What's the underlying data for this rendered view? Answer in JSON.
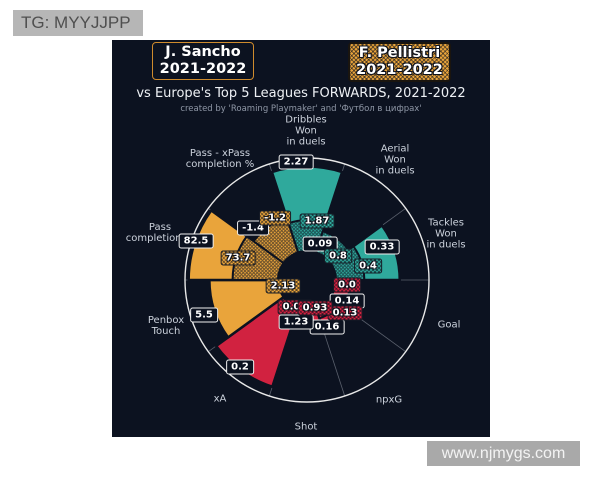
{
  "watermarks": {
    "top_left": "TG: MYYJJPP",
    "bottom_right": "www.njmygs.com"
  },
  "header": {
    "player1": {
      "name": "J. Sancho",
      "season": "2021-2022"
    },
    "player2": {
      "name": "F. Pellistri",
      "season": "2021-2022"
    },
    "title": "vs Europe's Top 5 Leagues FORWARDS, 2021-2022",
    "subtitle": "created by 'Roaming Playmaker' and 'Футбол в цифрах'"
  },
  "colors": {
    "panel_background": "#0c1220",
    "teal": "#2fa99c",
    "orange": "#e9a43b",
    "red": "#d12240",
    "outer_circle": "#e8e8e8",
    "spoke": "#9aa0ab",
    "axis_label": "#ccd2dc",
    "badge_border_orange": "#cf8b2d",
    "watermark_gray": "#b6b6b6"
  },
  "chart_data": {
    "type": "pizza-comparison-radar",
    "title": "vs Europe's Top 5 Leagues FORWARDS, 2021-2022",
    "subtitle": "created by 'Roaming Playmaker' and 'Футбол в цифрах'",
    "players": [
      {
        "name": "J. Sancho",
        "season": "2021-2022",
        "box_style": "dark-solid"
      },
      {
        "name": "F. Pellistri",
        "season": "2021-2022",
        "box_style": "color-hatched"
      }
    ],
    "legend_position": "top-badges",
    "grid": "radial-sector-spokes",
    "sectors": [
      {
        "slug": "dribbles-won-in-duels",
        "label_lines": [
          "Dribbles",
          "Won",
          "in duels"
        ],
        "color_key": "teal",
        "sancho": {
          "value": "2.27",
          "radius_frac": 0.93
        },
        "pellistri": {
          "value": "1.87",
          "radius_frac": 0.49
        }
      },
      {
        "slug": "aerial-won-in-duels",
        "label_lines": [
          "Aerial",
          "Won",
          "in duels"
        ],
        "color_key": "teal",
        "sancho": {
          "value": "0.09",
          "radius_frac": 0.13
        },
        "pellistri": {
          "value": "0.8",
          "radius_frac": 0.42
        }
      },
      {
        "slug": "tackles-won-in-duels",
        "label_lines": [
          "Tackles",
          "Won",
          "in duels"
        ],
        "color_key": "teal",
        "sancho": {
          "value": "0.33",
          "radius_frac": 0.76
        },
        "pellistri": {
          "value": "0.4",
          "radius_frac": 0.47
        }
      },
      {
        "slug": "goal",
        "label_lines": [
          "Goal"
        ],
        "color_key": "red",
        "sancho": {
          "value": "0.14",
          "radius_frac": 0.36
        },
        "pellistri": {
          "value": "0.0",
          "radius_frac": 0.03
        }
      },
      {
        "slug": "npxg",
        "label_lines": [
          "npxG"
        ],
        "color_key": "red",
        "sancho": {
          "value": "0.16",
          "radius_frac": 0.42
        },
        "pellistri": {
          "value": "0.13",
          "radius_frac": 0.33
        }
      },
      {
        "slug": "shot",
        "label_lines": [
          "Shot"
        ],
        "color_key": "red",
        "sancho": {
          "value": "1.23",
          "radius_frac": 0.36
        },
        "pellistri": {
          "value": "0.93",
          "radius_frac": 0.24
        }
      },
      {
        "slug": "xa",
        "label_lines": [
          "xA"
        ],
        "color_key": "red",
        "sancho": {
          "value": "0.2",
          "radius_frac": 0.92
        },
        "pellistri": {
          "value": "0.05",
          "radius_frac": 0.24
        }
      },
      {
        "slug": "penbox-touch",
        "label_lines": [
          "Penbox",
          "Touch"
        ],
        "color_key": "orange",
        "sancho": {
          "value": "5.5",
          "radius_frac": 0.8
        },
        "pellistri": {
          "value": "2.13",
          "radius_frac": 0.22
        }
      },
      {
        "slug": "pass-completion",
        "label_lines": [
          "Pass",
          "completion %"
        ],
        "color_key": "orange",
        "sancho": {
          "value": "82.5",
          "radius_frac": 0.97
        },
        "pellistri": {
          "value": "73.7",
          "radius_frac": 0.61
        }
      },
      {
        "slug": "pass-xpass-completion",
        "label_lines": [
          "Pass - xPass",
          "completion %"
        ],
        "color_key": "orange",
        "sancho": {
          "value": "-1.4",
          "radius_frac": 0.4
        },
        "pellistri": {
          "value": "-1.2",
          "radius_frac": 0.54
        }
      }
    ]
  }
}
